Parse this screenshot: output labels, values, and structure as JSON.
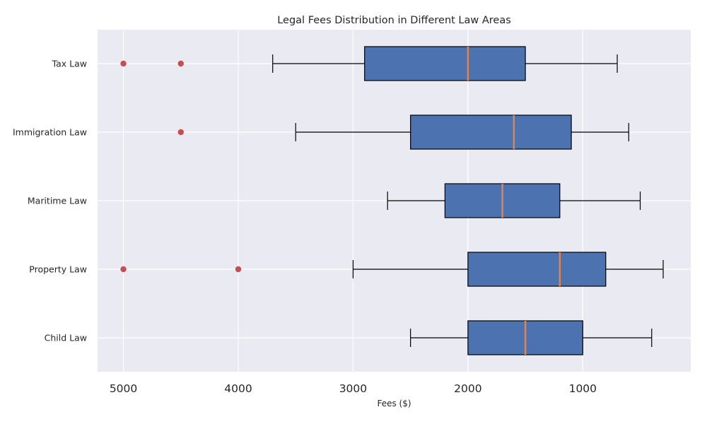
{
  "chart_data": {
    "type": "boxplot",
    "orientation": "horizontal",
    "title": "Legal Fees Distribution in Different Law Areas",
    "xlabel": "Fees ($)",
    "ylabel": "",
    "x_inverted": true,
    "xlim": [
      5225,
      60
    ],
    "xticks": [
      5000,
      4000,
      3000,
      2000,
      1000
    ],
    "grid": true,
    "colors": {
      "background": "#eaeaf2",
      "grid": "#ffffff",
      "box_fill": "#4c72b0",
      "box_edge": "#000000",
      "median": "#dd8452",
      "outlier": "#c44e52",
      "whisker": "#000000"
    },
    "categories": [
      "Tax Law",
      "Immigration Law",
      "Maritime Law",
      "Property Law",
      "Child Law"
    ],
    "boxes": [
      {
        "label": "Tax Law",
        "whisker_low": 700,
        "q1": 1500,
        "median": 2000,
        "q3": 2900,
        "whisker_high": 3700,
        "outliers": [
          4500,
          5000
        ]
      },
      {
        "label": "Immigration Law",
        "whisker_low": 600,
        "q1": 1100,
        "median": 1600,
        "q3": 2500,
        "whisker_high": 3500,
        "outliers": [
          4500
        ]
      },
      {
        "label": "Maritime Law",
        "whisker_low": 500,
        "q1": 1200,
        "median": 1700,
        "q3": 2200,
        "whisker_high": 2700,
        "outliers": []
      },
      {
        "label": "Property Law",
        "whisker_low": 300,
        "q1": 800,
        "median": 1200,
        "q3": 2000,
        "whisker_high": 3000,
        "outliers": [
          4000,
          5000
        ]
      },
      {
        "label": "Child Law",
        "whisker_low": 400,
        "q1": 1000,
        "median": 1500,
        "q3": 2000,
        "whisker_high": 2500,
        "outliers": []
      }
    ]
  }
}
